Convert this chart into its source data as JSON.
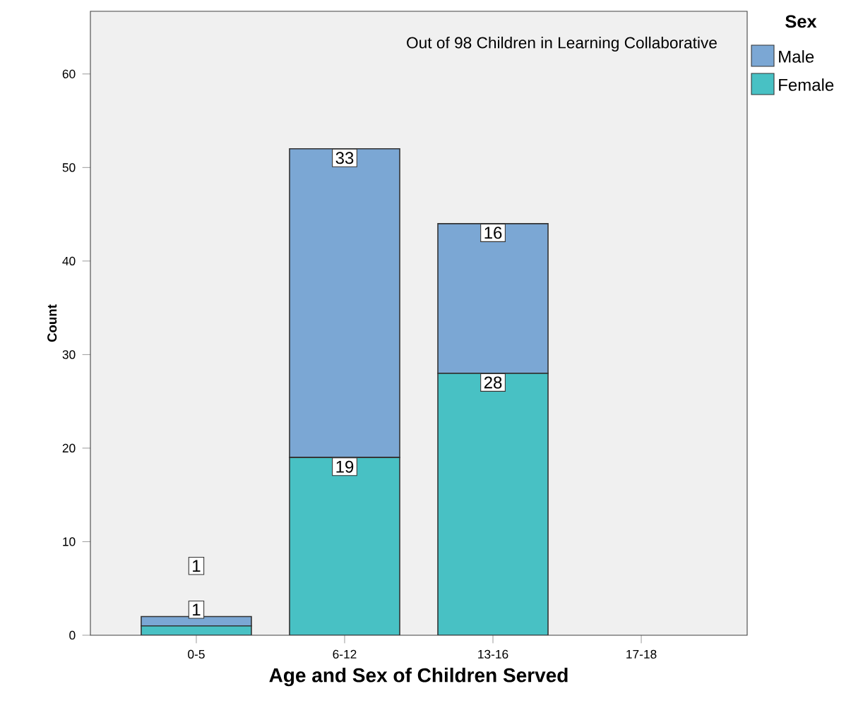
{
  "chart_data": {
    "type": "bar",
    "stacked": true,
    "xlabel": "Age and Sex of Children Served",
    "ylabel": "Count",
    "legend_title": "Sex",
    "legend": "top right",
    "annotations": [
      "Out of 98 Children in Learning Collaborative"
    ],
    "categories": [
      "0-5",
      "6-12",
      "13-16",
      "17-18"
    ],
    "series": [
      {
        "name": "Female",
        "color": "#48c1c4",
        "values": [
          1,
          19,
          28,
          null
        ]
      },
      {
        "name": "Male",
        "color": "#7ba7d4",
        "values": [
          1,
          33,
          16,
          null
        ]
      }
    ],
    "ylim": [
      0,
      66.7
    ],
    "yticks": [
      0,
      10,
      20,
      30,
      40,
      50,
      60
    ],
    "data_labels": true,
    "grid": false
  }
}
